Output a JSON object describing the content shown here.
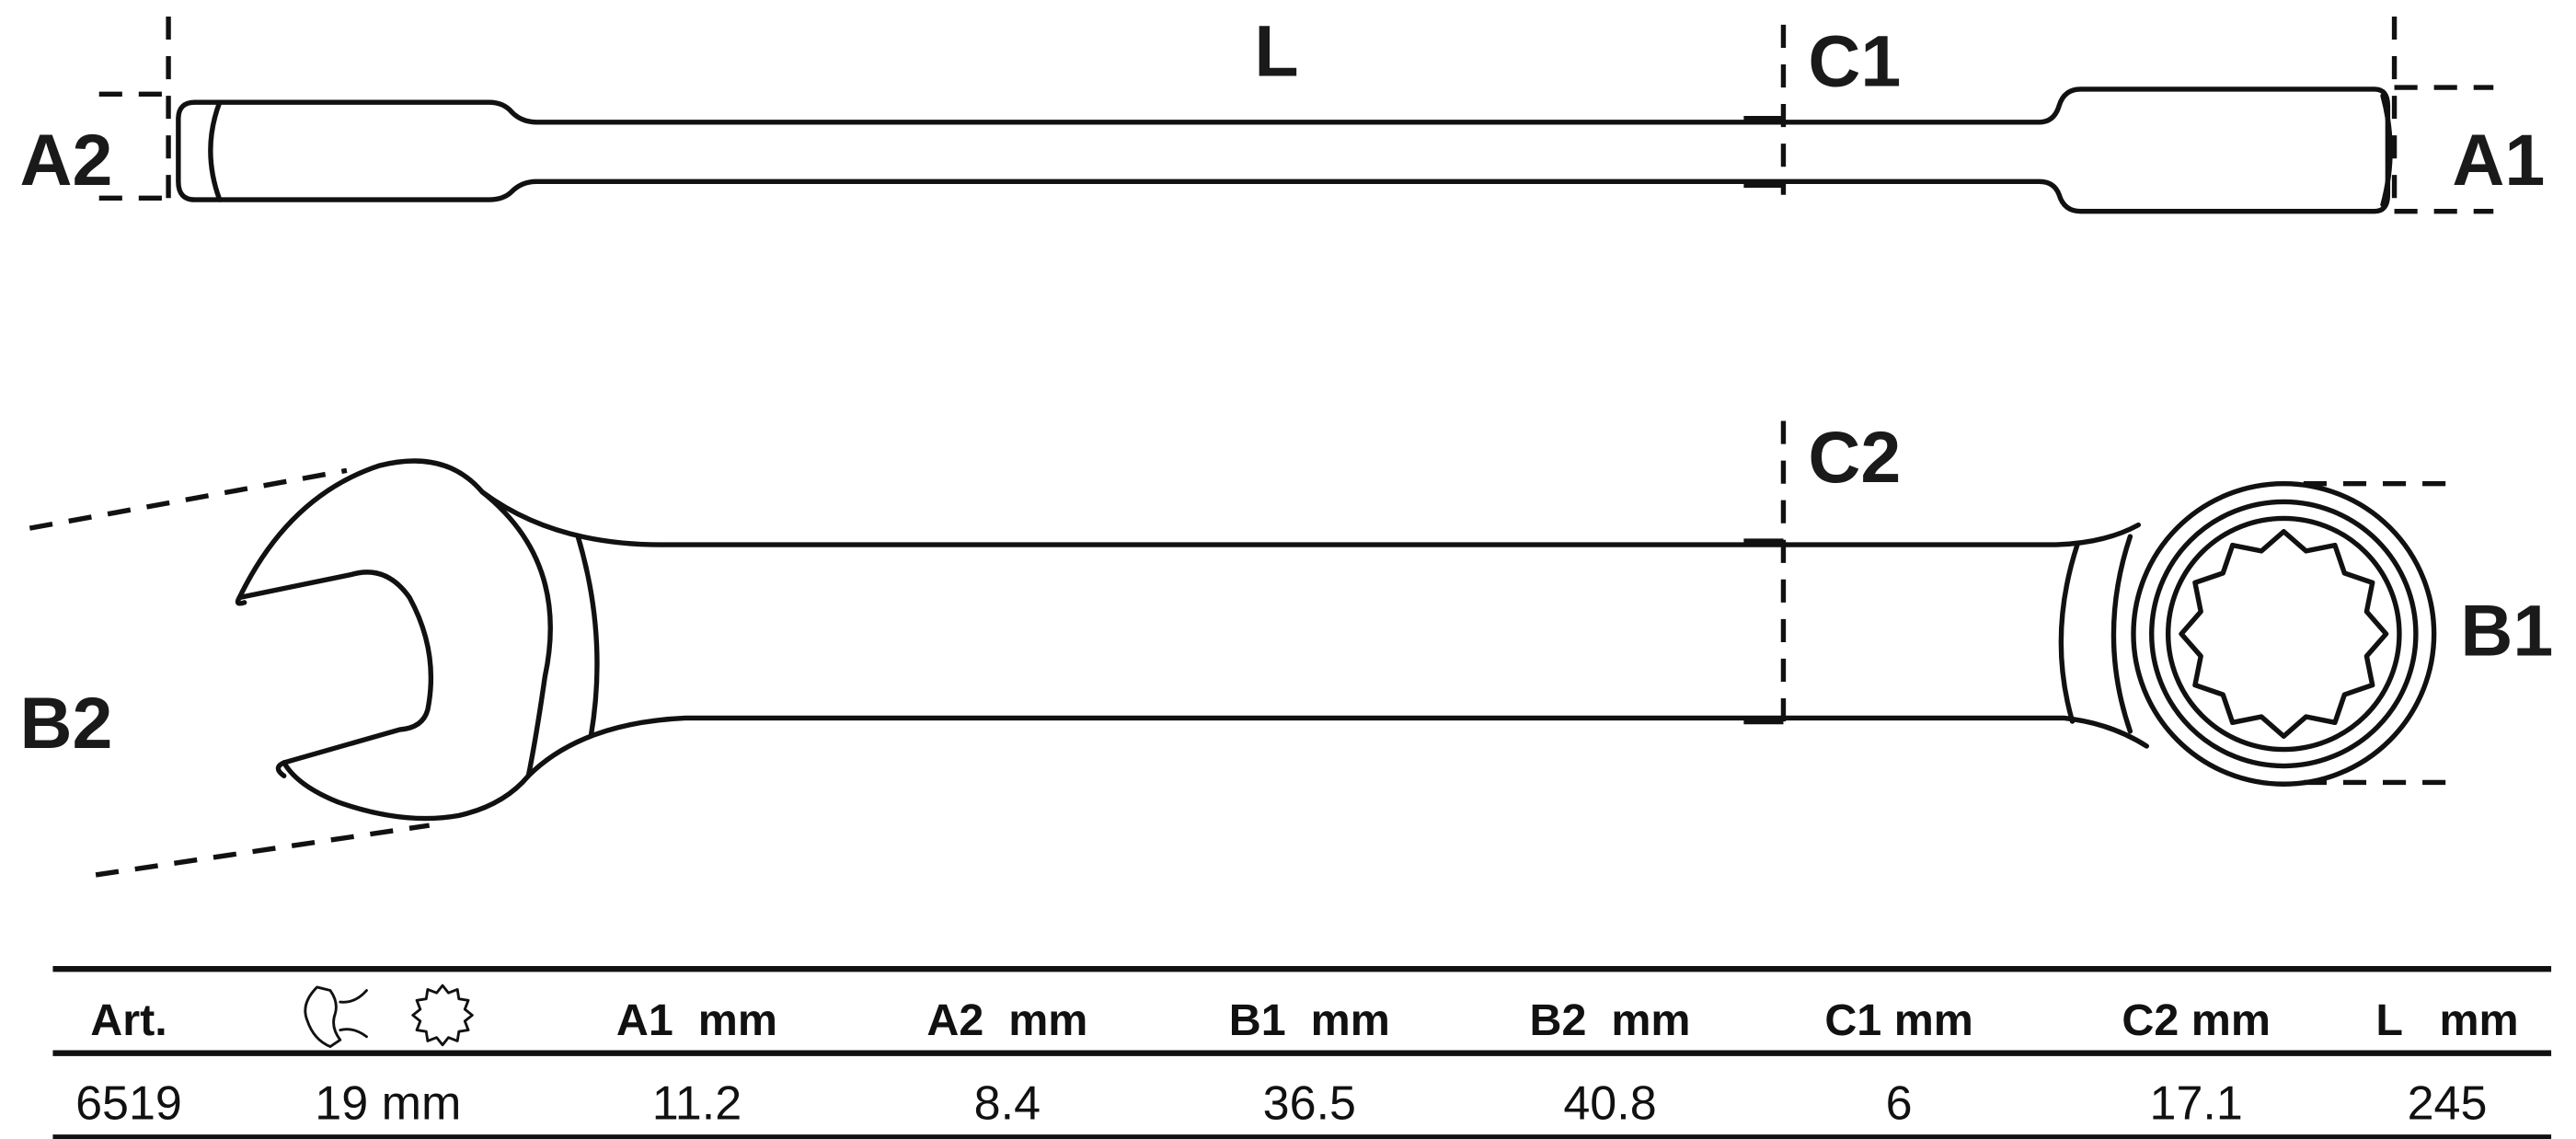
{
  "labels": {
    "L": "L",
    "C1": "C1",
    "C2": "C2",
    "A1": "A1",
    "A2": "A2",
    "B1": "B1",
    "B2": "B2"
  },
  "table": {
    "headers": [
      "Art.",
      "",
      "A1  mm",
      "A2  mm",
      "B1  mm",
      "B2  mm",
      "C1 mm",
      "C2 mm",
      "L   mm"
    ],
    "header_icons": [
      "open-end-wrench-icon",
      "twelve-point-ring-icon"
    ],
    "rows": [
      [
        "6519",
        "19 mm",
        "11.2",
        "8.4",
        "36.5",
        "40.8",
        "6",
        "17.1",
        "245"
      ]
    ]
  }
}
